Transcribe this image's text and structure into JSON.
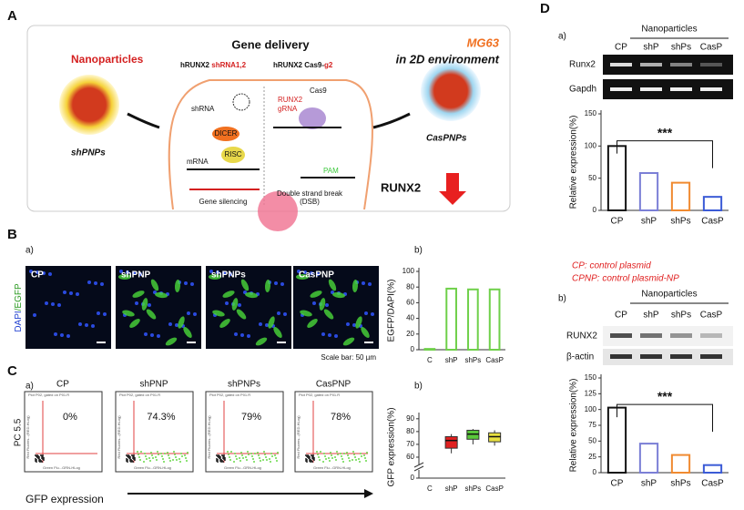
{
  "chart_data": [
    {
      "type": "bar",
      "ylabel": "EGFP/DAPI(%)",
      "categories": [
        "C",
        "shP",
        "shPs",
        "CasP"
      ],
      "values": [
        1,
        78,
        77,
        77
      ],
      "colors": [
        "#6fd04a",
        "#6fd04a",
        "#6fd04a",
        "#6fd04a"
      ],
      "ylim": [
        0,
        100
      ],
      "yticks": [
        0,
        20,
        40,
        60,
        80,
        100
      ]
    },
    {
      "type": "box",
      "ylabel": "GFP expression(%)",
      "categories": [
        "C",
        "shP",
        "shPs",
        "CasP"
      ],
      "values": [
        null,
        73,
        78,
        76
      ],
      "q1": [
        null,
        67,
        74,
        72
      ],
      "q3": [
        null,
        76,
        81,
        79
      ],
      "whisker_low": [
        null,
        63,
        70,
        69
      ],
      "whisker_high": [
        null,
        78,
        82,
        81
      ],
      "colors": [
        "#e02020",
        "#e02020",
        "#5ac83a",
        "#e8e040"
      ],
      "ylim": [
        0,
        92
      ],
      "axis_break": [
        2,
        55
      ],
      "yticks": [
        0,
        60,
        70,
        80,
        90
      ]
    },
    {
      "type": "bar",
      "ylabel": "Relative expression(%)",
      "categories": [
        "CP",
        "shP",
        "shPs",
        "CasP"
      ],
      "values": [
        100,
        58,
        43,
        21
      ],
      "colors": [
        "#111111",
        "#7b7fd6",
        "#f08a30",
        "#3b5bd6"
      ],
      "ylim": [
        0,
        150
      ],
      "yticks": [
        0,
        50,
        100,
        150
      ],
      "annotation": "***"
    },
    {
      "type": "bar",
      "ylabel": "Relative expression(%)",
      "categories": [
        "CP",
        "shP",
        "shPs",
        "CasP"
      ],
      "values": [
        103,
        46,
        28,
        12
      ],
      "colors": [
        "#111111",
        "#7b7fd6",
        "#f08a30",
        "#3b5bd6"
      ],
      "ylim": [
        0,
        150
      ],
      "yticks": [
        0,
        25,
        50,
        75,
        100,
        125,
        150
      ],
      "annotation": "***"
    }
  ],
  "panel_a": {
    "label": "A",
    "nanoparticles": "Nanoparticles",
    "shpnps": "shPNPs",
    "gene_delivery": "Gene delivery",
    "construct1_a": "hRUNX2",
    "construct1_b": "shRNA1,2",
    "construct2_a": "hRUNX2 Cas9-",
    "construct2_b": "g2",
    "mg63": "MG63",
    "environment": "in 2D environment",
    "caspnps": "CasPNPs",
    "runx2": "RUNX2",
    "shrna": "shRNA",
    "dicer": "DICER",
    "risc": "RISC",
    "mrna": "mRNA",
    "silencing": "Gene silencing",
    "grna1": "RUNX2",
    "grna2": "gRNA",
    "cas9": "Cas9",
    "pam": "PAM",
    "dsb1": "Double strand break",
    "dsb2": "(DSB)"
  },
  "panel_b": {
    "label": "B",
    "sub_a": "a)",
    "sub_b": "b)",
    "images": [
      "CP",
      "shPNP",
      "shPNPs",
      "CasPNP"
    ],
    "stain_a": "DAPI",
    "stain_b": "/EGFP",
    "scale_bar": "Scale bar: 50 µm"
  },
  "panel_c": {
    "label": "C",
    "sub_a": "a)",
    "sub_b": "b)",
    "images": [
      "CP",
      "shPNP",
      "shPNPs",
      "CasPNP"
    ],
    "percents": [
      "0%",
      "74.3%",
      "79%",
      "78%"
    ],
    "gate_title": "Plot P02, gated on P01.R",
    "x_channel": "Green Flu...GRN-HLog",
    "y_channel": "Red Fluores...(RED-HLog)",
    "ylabel": "PC 5.5",
    "xlabel": "GFP expression"
  },
  "panel_d": {
    "label": "D",
    "sub_a": "a)",
    "sub_b": "b)",
    "np_a": "Nanoparticles",
    "lanes_a": [
      "CP",
      "shP",
      "shPs",
      "CasP"
    ],
    "runx2": "Runx2",
    "gapdh": "Gapdh",
    "legend1": "CP: control plasmid",
    "legend2": "CPNP: control plasmid-NP",
    "np_b": "Nanoparticles",
    "lanes_b": [
      "CP",
      "shP",
      "shPs",
      "CasP"
    ],
    "runx2_b": "RUNX2",
    "actin": "β-actin"
  }
}
